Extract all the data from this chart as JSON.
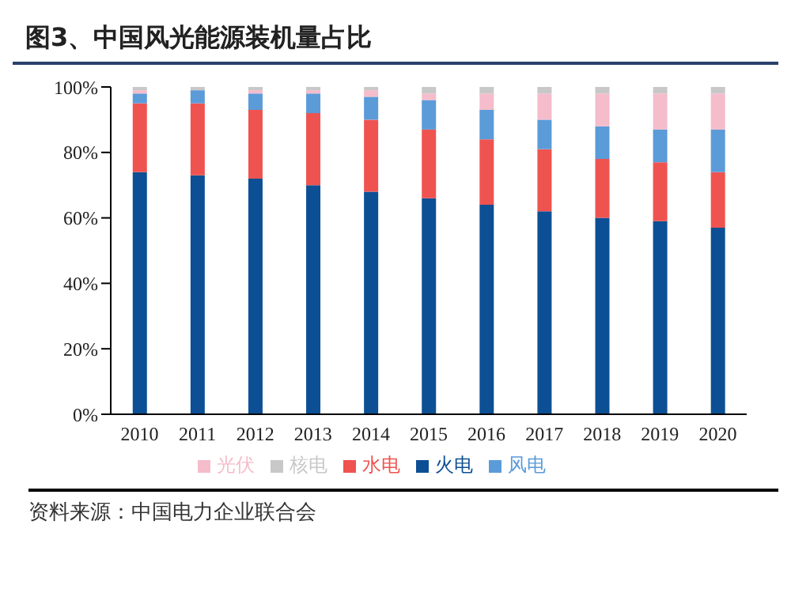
{
  "chart_data": {
    "type": "bar",
    "title": "图3、中国风光能源装机量占比",
    "categories": [
      "2010",
      "2011",
      "2012",
      "2013",
      "2014",
      "2015",
      "2016",
      "2017",
      "2018",
      "2019",
      "2020"
    ],
    "stacked": true,
    "series": [
      {
        "name": "火电",
        "color": "#0d4f94",
        "values": [
          74,
          73,
          72,
          70,
          68,
          66,
          64,
          62,
          60,
          59,
          57
        ]
      },
      {
        "name": "水电",
        "color": "#ef5350",
        "values": [
          21,
          22,
          21,
          22,
          22,
          21,
          20,
          19,
          18,
          18,
          17
        ]
      },
      {
        "name": "风电",
        "color": "#5b9bd8",
        "values": [
          3,
          4,
          5,
          6,
          7,
          9,
          9,
          9,
          10,
          10,
          13
        ]
      },
      {
        "name": "光伏",
        "color": "#f5bccb",
        "values": [
          1,
          0,
          1,
          1,
          2,
          2,
          5,
          8,
          10,
          11,
          11
        ]
      },
      {
        "name": "核电",
        "color": "#c8c8c8",
        "values": [
          1,
          1,
          1,
          1,
          1,
          2,
          2,
          2,
          2,
          2,
          2
        ]
      }
    ],
    "ylim": [
      0,
      100
    ],
    "yticks": [
      {
        "value": 0,
        "label": "0%"
      },
      {
        "value": 20,
        "label": "20%"
      },
      {
        "value": 40,
        "label": "40%"
      },
      {
        "value": 60,
        "label": "60%"
      },
      {
        "value": 80,
        "label": "80%"
      },
      {
        "value": 100,
        "label": "100%"
      }
    ],
    "grid": false,
    "legend": "bottom",
    "annotations": [
      "资料来源：中国电力企业联合会"
    ]
  }
}
